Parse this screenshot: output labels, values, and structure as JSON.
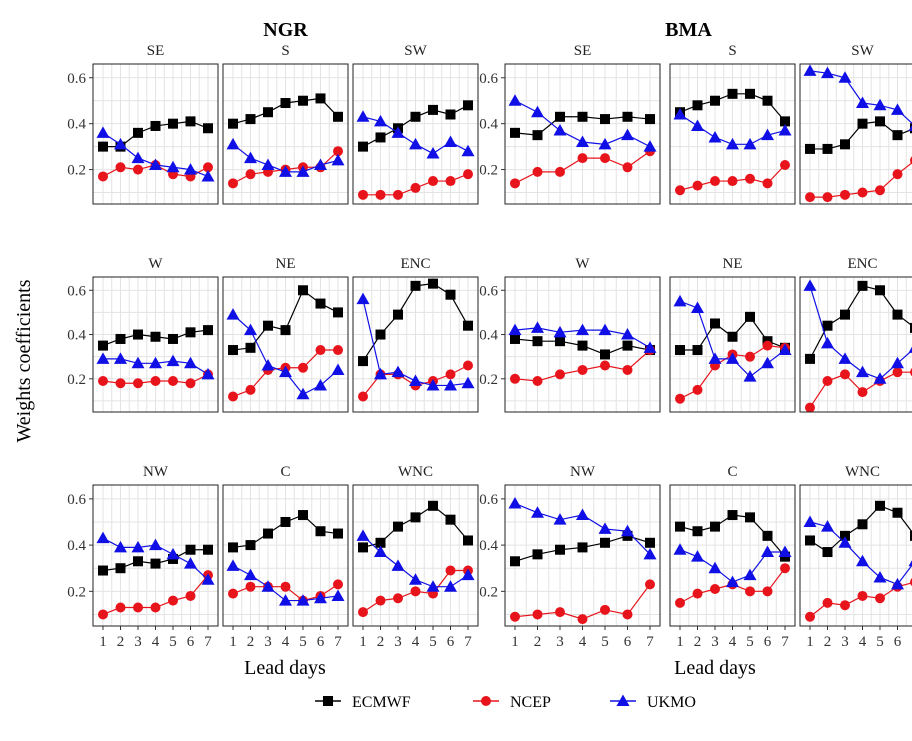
{
  "chart_data": {
    "type": "line",
    "ylabel": "Weights coefficients",
    "xlabel": "Lead days",
    "x": [
      1,
      2,
      3,
      4,
      5,
      6,
      7
    ],
    "ylim": [
      0.05,
      0.66
    ],
    "yticks": [
      "0.2",
      "0.4",
      "0.6"
    ],
    "grid": true,
    "legend_position": "bottom",
    "series_meta": [
      {
        "name": "ECMWF",
        "color": "#000000",
        "marker": "square"
      },
      {
        "name": "NCEP",
        "color": "#e8141b",
        "marker": "circle"
      },
      {
        "name": "UKMO",
        "color": "#1010e6",
        "marker": "triangle"
      }
    ],
    "blocks": [
      {
        "title": "NGR",
        "panels": [
          {
            "label": "SE",
            "series": {
              "ECMWF": [
                0.3,
                0.3,
                0.36,
                0.39,
                0.4,
                0.41,
                0.38
              ],
              "NCEP": [
                0.17,
                0.21,
                0.2,
                0.22,
                0.18,
                0.17,
                0.21
              ],
              "UKMO": [
                0.36,
                0.31,
                0.25,
                0.22,
                0.21,
                0.2,
                0.17
              ]
            }
          },
          {
            "label": "S",
            "series": {
              "ECMWF": [
                0.4,
                0.42,
                0.45,
                0.49,
                0.5,
                0.51,
                0.43
              ],
              "NCEP": [
                0.14,
                0.18,
                0.19,
                0.2,
                0.21,
                0.21,
                0.28
              ],
              "UKMO": [
                0.31,
                0.25,
                0.22,
                0.19,
                0.19,
                0.22,
                0.24
              ]
            }
          },
          {
            "label": "SW",
            "series": {
              "ECMWF": [
                0.3,
                0.34,
                0.38,
                0.43,
                0.46,
                0.44,
                0.48
              ],
              "NCEP": [
                0.09,
                0.09,
                0.09,
                0.12,
                0.15,
                0.15,
                0.18
              ],
              "UKMO": [
                0.43,
                0.41,
                0.36,
                0.31,
                0.27,
                0.32,
                0.28
              ]
            }
          },
          {
            "label": "W",
            "series": {
              "ECMWF": [
                0.35,
                0.38,
                0.4,
                0.39,
                0.38,
                0.41,
                0.42
              ],
              "NCEP": [
                0.19,
                0.18,
                0.18,
                0.19,
                0.19,
                0.18,
                0.22
              ],
              "UKMO": [
                0.29,
                0.29,
                0.27,
                0.27,
                0.28,
                0.27,
                0.22
              ]
            }
          },
          {
            "label": "NE",
            "series": {
              "ECMWF": [
                0.33,
                0.34,
                0.44,
                0.42,
                0.6,
                0.54,
                0.5
              ],
              "NCEP": [
                0.12,
                0.15,
                0.24,
                0.25,
                0.25,
                0.33,
                0.33
              ],
              "UKMO": [
                0.49,
                0.42,
                0.26,
                0.23,
                0.13,
                0.17,
                0.24
              ]
            }
          },
          {
            "label": "ENC",
            "series": {
              "ECMWF": [
                0.28,
                0.4,
                0.49,
                0.62,
                0.63,
                0.58,
                0.44
              ],
              "NCEP": [
                0.12,
                0.22,
                0.22,
                0.17,
                0.19,
                0.22,
                0.26
              ],
              "UKMO": [
                0.56,
                0.22,
                0.23,
                0.19,
                0.17,
                0.17,
                0.18
              ]
            }
          },
          {
            "label": "NW",
            "series": {
              "ECMWF": [
                0.29,
                0.3,
                0.33,
                0.32,
                0.34,
                0.38,
                0.38
              ],
              "NCEP": [
                0.1,
                0.13,
                0.13,
                0.13,
                0.16,
                0.18,
                0.27
              ],
              "UKMO": [
                0.43,
                0.39,
                0.39,
                0.4,
                0.36,
                0.32,
                0.25
              ]
            }
          },
          {
            "label": "C",
            "series": {
              "ECMWF": [
                0.39,
                0.4,
                0.45,
                0.5,
                0.53,
                0.46,
                0.45
              ],
              "NCEP": [
                0.19,
                0.22,
                0.22,
                0.22,
                0.16,
                0.18,
                0.23
              ],
              "UKMO": [
                0.31,
                0.27,
                0.22,
                0.16,
                0.16,
                0.17,
                0.18
              ]
            }
          },
          {
            "label": "WNC",
            "series": {
              "ECMWF": [
                0.39,
                0.41,
                0.48,
                0.52,
                0.57,
                0.51,
                0.42
              ],
              "NCEP": [
                0.11,
                0.16,
                0.17,
                0.2,
                0.19,
                0.29,
                0.29
              ],
              "UKMO": [
                0.44,
                0.37,
                0.31,
                0.25,
                0.22,
                0.22,
                0.27
              ]
            }
          }
        ]
      },
      {
        "title": "BMA",
        "panels": [
          {
            "label": "SE",
            "series": {
              "ECMWF": [
                0.36,
                0.35,
                0.43,
                0.43,
                0.42,
                0.43,
                0.42
              ],
              "NCEP": [
                0.14,
                0.19,
                0.19,
                0.25,
                0.25,
                0.21,
                0.28
              ],
              "UKMO": [
                0.5,
                0.45,
                0.37,
                0.32,
                0.31,
                0.35,
                0.3
              ]
            }
          },
          {
            "label": "S",
            "series": {
              "ECMWF": [
                0.45,
                0.48,
                0.5,
                0.53,
                0.53,
                0.5,
                0.41
              ],
              "NCEP": [
                0.11,
                0.13,
                0.15,
                0.15,
                0.16,
                0.14,
                0.22
              ],
              "UKMO": [
                0.44,
                0.39,
                0.34,
                0.31,
                0.31,
                0.35,
                0.37
              ]
            }
          },
          {
            "label": "SW",
            "series": {
              "ECMWF": [
                0.29,
                0.29,
                0.31,
                0.4,
                0.41,
                0.35,
                0.38
              ],
              "NCEP": [
                0.08,
                0.08,
                0.09,
                0.1,
                0.11,
                0.18,
                0.24
              ],
              "UKMO": [
                0.63,
                0.62,
                0.6,
                0.49,
                0.48,
                0.46,
                0.39
              ]
            }
          },
          {
            "label": "W",
            "series": {
              "ECMWF": [
                0.38,
                0.37,
                0.37,
                0.35,
                0.31,
                0.35,
                0.33
              ],
              "NCEP": [
                0.2,
                0.19,
                0.22,
                0.24,
                0.26,
                0.24,
                0.33
              ],
              "UKMO": [
                0.42,
                0.43,
                0.41,
                0.42,
                0.42,
                0.4,
                0.34
              ]
            }
          },
          {
            "label": "NE",
            "series": {
              "ECMWF": [
                0.33,
                0.33,
                0.45,
                0.39,
                0.48,
                0.37,
                0.34
              ],
              "NCEP": [
                0.11,
                0.15,
                0.26,
                0.31,
                0.3,
                0.35,
                0.34
              ],
              "UKMO": [
                0.55,
                0.52,
                0.29,
                0.29,
                0.21,
                0.27,
                0.33
              ]
            }
          },
          {
            "label": "ENC",
            "series": {
              "ECMWF": [
                0.29,
                0.44,
                0.49,
                0.62,
                0.6,
                0.49,
                0.43
              ],
              "NCEP": [
                0.07,
                0.19,
                0.22,
                0.14,
                0.19,
                0.23,
                0.23
              ],
              "UKMO": [
                0.62,
                0.36,
                0.29,
                0.23,
                0.2,
                0.27,
                0.34
              ]
            }
          },
          {
            "label": "NW",
            "series": {
              "ECMWF": [
                0.33,
                0.36,
                0.38,
                0.39,
                0.41,
                0.44,
                0.41
              ],
              "NCEP": [
                0.09,
                0.1,
                0.11,
                0.08,
                0.12,
                0.1,
                0.23
              ],
              "UKMO": [
                0.58,
                0.54,
                0.51,
                0.53,
                0.47,
                0.46,
                0.36
              ]
            }
          },
          {
            "label": "C",
            "series": {
              "ECMWF": [
                0.48,
                0.46,
                0.48,
                0.53,
                0.52,
                0.44,
                0.35
              ],
              "NCEP": [
                0.15,
                0.19,
                0.21,
                0.23,
                0.2,
                0.2,
                0.3
              ],
              "UKMO": [
                0.38,
                0.35,
                0.3,
                0.24,
                0.27,
                0.37,
                0.37
              ]
            }
          },
          {
            "label": "WNC",
            "series": {
              "ECMWF": [
                0.42,
                0.37,
                0.44,
                0.49,
                0.57,
                0.54,
                0.44
              ],
              "NCEP": [
                0.09,
                0.15,
                0.14,
                0.18,
                0.17,
                0.22,
                0.24
              ],
              "UKMO": [
                0.5,
                0.48,
                0.41,
                0.33,
                0.26,
                0.23,
                0.33
              ]
            }
          }
        ]
      }
    ]
  }
}
